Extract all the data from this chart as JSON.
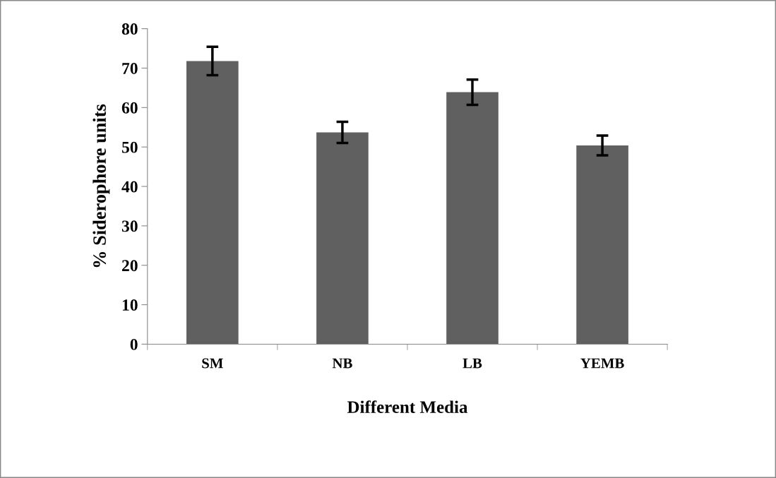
{
  "chart_data": {
    "type": "bar",
    "xlabel": "Different Media",
    "ylabel": "% Siderophore units",
    "categories": [
      "SM",
      "NB",
      "LB",
      "YEMB"
    ],
    "values": [
      71.8,
      53.7,
      63.9,
      50.4
    ],
    "errors": [
      3.6,
      2.7,
      3.2,
      2.5
    ],
    "color": "#606060",
    "ylim": [
      0,
      80
    ],
    "yticks": [
      0,
      10,
      20,
      30,
      40,
      50,
      60,
      70,
      80
    ],
    "grid": false,
    "legend": false
  }
}
